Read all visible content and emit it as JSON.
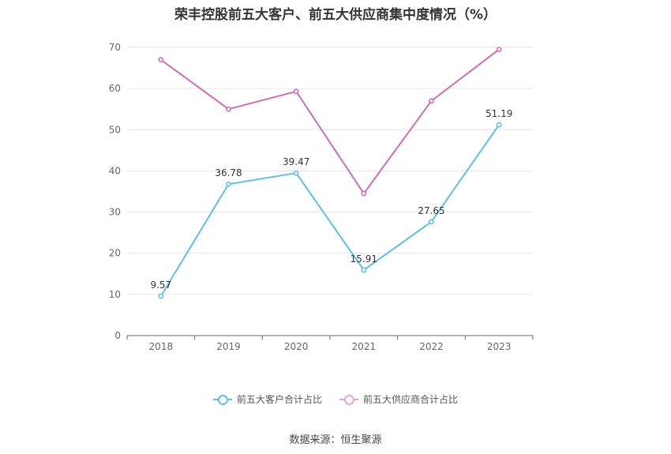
{
  "chart_data": {
    "type": "line",
    "title": "荣丰控股前五大客户、前五大供应商集中度情况（%）",
    "categories": [
      "2018",
      "2019",
      "2020",
      "2021",
      "2022",
      "2023"
    ],
    "ylim": [
      0,
      70
    ],
    "yticks": [
      "0",
      "10",
      "20",
      "30",
      "40",
      "50",
      "60",
      "70"
    ],
    "grid": true,
    "legend_position": "bottom",
    "series": [
      {
        "name": "前五大客户合计占比",
        "color": "#5bc0eb",
        "values": [
          9.57,
          36.78,
          39.47,
          15.91,
          27.65,
          51.19
        ],
        "labels": [
          "9.57",
          "36.78",
          "39.47",
          "15.91",
          "27.65",
          "51.19"
        ]
      },
      {
        "name": "前五大供应商合计占比",
        "color": "#d46bb3",
        "values": [
          67.0,
          55.0,
          59.3,
          34.5,
          57.0,
          69.5
        ]
      }
    ]
  },
  "source": "数据来源：恒生聚源"
}
